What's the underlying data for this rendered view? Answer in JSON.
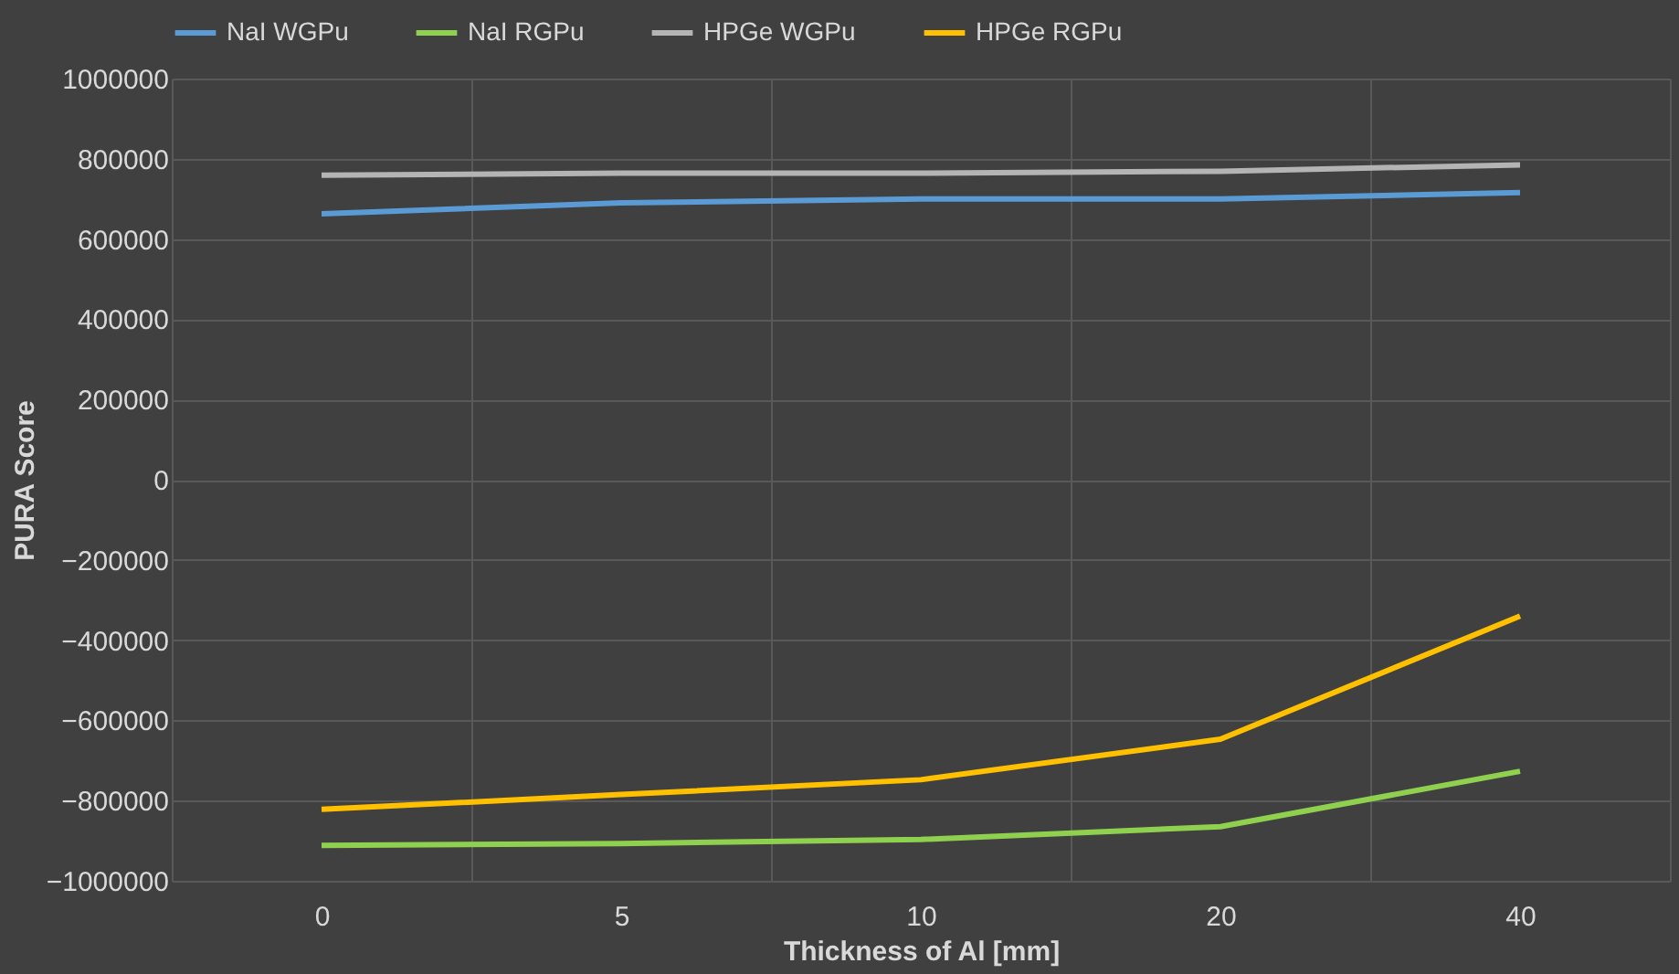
{
  "chart_data": {
    "type": "line",
    "xlabel": "Thickness of Al [mm]",
    "ylabel": "PURA Score",
    "categories": [
      "0",
      "5",
      "10",
      "20",
      "40"
    ],
    "series": [
      {
        "name": "NaI WGPu",
        "color": "#5b9bd5",
        "values": [
          663000,
          690000,
          700000,
          700000,
          716000
        ]
      },
      {
        "name": "NaI RGPu",
        "color": "#8fd14f",
        "values": [
          -912000,
          -907000,
          -897000,
          -865000,
          -727000
        ]
      },
      {
        "name": "HPGe WGPu",
        "color": "#b4b4b4",
        "values": [
          759000,
          764000,
          764000,
          769000,
          785000
        ]
      },
      {
        "name": "HPGe RGPu",
        "color": "#ffc000",
        "values": [
          -822000,
          -785000,
          -748000,
          -647000,
          -340000
        ]
      }
    ],
    "ylim": [
      -1000000,
      1000000
    ],
    "yticks": [
      -1000000,
      -800000,
      -600000,
      -400000,
      -200000,
      0,
      200000,
      400000,
      600000,
      800000,
      1000000
    ],
    "grid": true,
    "legend": "top",
    "marker": "none",
    "line_style": "solid"
  }
}
